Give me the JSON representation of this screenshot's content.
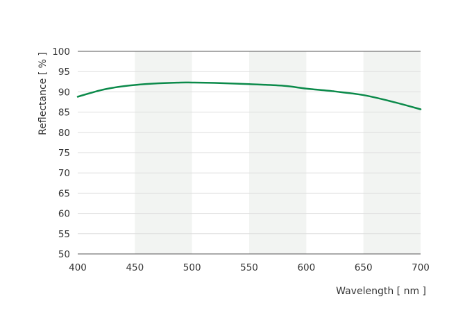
{
  "chart_data": {
    "type": "line",
    "xlabel": "Wavelength [ nm ]",
    "ylabel": "Reflectance [ % ]",
    "xlim": [
      400,
      700
    ],
    "ylim": [
      50,
      100
    ],
    "x_ticks": [
      400,
      450,
      500,
      550,
      600,
      650,
      700
    ],
    "y_ticks": [
      50,
      55,
      60,
      65,
      70,
      75,
      80,
      85,
      90,
      95,
      100
    ],
    "grid": true,
    "shaded_bands": [
      [
        450,
        500
      ],
      [
        550,
        600
      ],
      [
        650,
        700
      ]
    ],
    "colors": {
      "series": "#0b8a4a",
      "band": "#f2f4f2",
      "grid": "#dddddd"
    },
    "series": [
      {
        "name": "",
        "x": [
          400,
          420,
          435,
          450,
          470,
          490,
          500,
          520,
          550,
          580,
          600,
          625,
          650,
          675,
          700
        ],
        "y": [
          88.8,
          90.4,
          91.2,
          91.7,
          92.1,
          92.3,
          92.3,
          92.2,
          91.9,
          91.5,
          90.8,
          90.1,
          89.2,
          87.6,
          85.7
        ]
      }
    ]
  }
}
